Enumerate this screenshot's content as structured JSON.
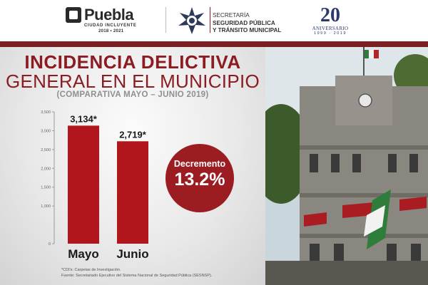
{
  "header": {
    "puebla_logo": {
      "name": "Puebla",
      "tagline": "CIUDAD INCLUYENTE",
      "period": "2018 • 2021"
    },
    "ssp_logo": {
      "line1": "SECRETARÍA",
      "line2": "SEGURIDAD PÚBLICA",
      "line3": "Y TRÁNSITO MUNICIPAL"
    },
    "anniversary_logo": {
      "number": "20",
      "label": "ANIVERSARIO",
      "years": "1999 · 2019"
    }
  },
  "title_line1": "INCIDENCIA DELICTIVA",
  "title_line2": "GENERAL EN EL MUNICIPIO",
  "subtitle": "(COMPARATIVA MAYO – JUNIO 2019)",
  "badge": {
    "label": "Decremento",
    "value": "13.2%"
  },
  "footnote1": "*CDI's: Carpetas de Investigación.",
  "footnote2": "Fuente: Secretariado Ejecutivo del Sistema Nacional de Seguridad Pública (SESNSP).",
  "colors": {
    "brand": "#7a1f23",
    "bar": "#b0161b",
    "title": "#8a1c22"
  },
  "chart_data": {
    "type": "bar",
    "title": "INCIDENCIA DELICTIVA GENERAL EN EL MUNICIPIO",
    "subtitle": "(COMPARATIVA MAYO – JUNIO 2019)",
    "categories": [
      "Mayo",
      "Junio"
    ],
    "values": [
      3134,
      2719
    ],
    "value_labels": [
      "3,134*",
      "2,719*"
    ],
    "ylim": [
      0,
      3500
    ],
    "yticks": [
      0,
      1000,
      1500,
      2000,
      2500,
      3000,
      3500
    ],
    "ytick_labels": [
      "0",
      "1,000",
      "1,500",
      "2,000",
      "2,500",
      "3,000",
      "3,500"
    ],
    "grid": false,
    "legend": "none"
  }
}
